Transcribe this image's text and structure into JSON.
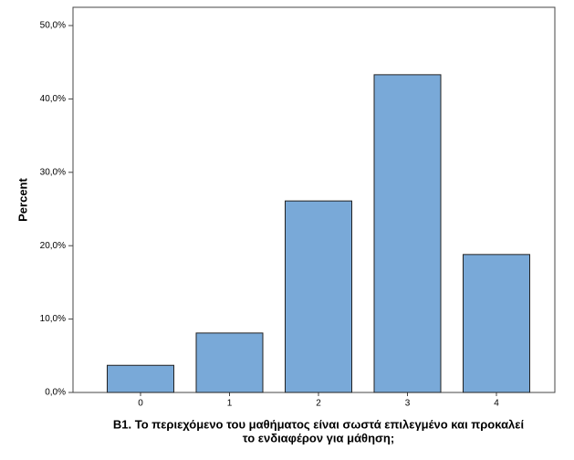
{
  "chart_data": {
    "type": "bar",
    "xlabel": [
      "B1. Το περιεχόμενο του μαθήματος είναι σωστά επιλεγμένο και προκαλεί",
      "το ενδιαφέρον για μάθηση;"
    ],
    "ylabel": "Percent",
    "categories": [
      "0",
      "1",
      "2",
      "3",
      "4"
    ],
    "values": [
      3.7,
      8.1,
      26.1,
      43.3,
      18.8
    ],
    "color": "#79a9d8",
    "ylim": [
      0,
      50
    ],
    "yticks": [
      {
        "value": 0,
        "label": "0,0%"
      },
      {
        "value": 10,
        "label": "10,0%"
      },
      {
        "value": 20,
        "label": "20,0%"
      },
      {
        "value": 30,
        "label": "30,0%"
      },
      {
        "value": 40,
        "label": "40,0%"
      },
      {
        "value": 50,
        "label": "50,0%"
      }
    ]
  }
}
